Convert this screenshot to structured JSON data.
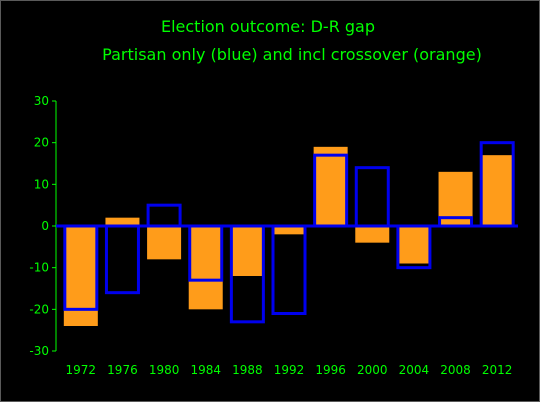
{
  "chart_data": {
    "type": "bar",
    "title": "Election outcome: D-R gap",
    "subtitle": "Partisan only (blue) and incl crossover (orange)",
    "categories": [
      "1972",
      "1976",
      "1980",
      "1984",
      "1988",
      "1992",
      "1996",
      "2000",
      "2004",
      "2008",
      "2012"
    ],
    "series": [
      {
        "name": "Partisan only",
        "color": "#0000ee",
        "style": "outline",
        "values": [
          -20,
          -16,
          5,
          -13,
          -23,
          -21,
          17,
          14,
          -10,
          2,
          20
        ]
      },
      {
        "name": "incl crossover",
        "color": "#ff9c1a",
        "style": "filled",
        "values": [
          -24,
          2,
          -8,
          -20,
          -12,
          -2,
          19,
          -4,
          -9,
          13,
          17
        ]
      }
    ],
    "xlabel": "",
    "ylabel": "",
    "ylim": [
      -30,
      30
    ],
    "yticks": [
      -30,
      -20,
      -10,
      0,
      10,
      20,
      30
    ],
    "grid": false,
    "colors": {
      "background": "#000000",
      "text": "#00ff00",
      "axis": "#00ff00",
      "zero_line": "#0000ee"
    }
  }
}
